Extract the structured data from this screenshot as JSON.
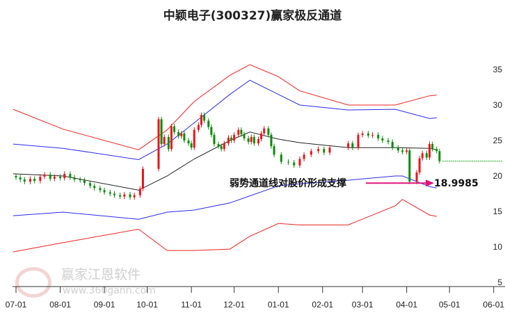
{
  "title": "中颖电子(300327)赢家极反通道",
  "watermark": {
    "brand": "赢家江恩软件",
    "url": "www.360gann.com",
    "seal": "江赢恩家"
  },
  "annotation": {
    "text": "弱势通道线对股价形成支撑",
    "value": "18.9985"
  },
  "colors": {
    "up": "#e8141b",
    "down": "#0a8a0a",
    "upper_band": "#ee2222",
    "upper_inner": "#2a2aee",
    "middle": "#222222",
    "lower_inner": "#2a2aee",
    "lower_band": "#ee2222",
    "arrow": "#e0157a",
    "last_price_line": "#1aa81a"
  },
  "chart_data": {
    "type": "candlestick",
    "title": "中颖电子(300327)赢家极反通道",
    "x_ticks": [
      "07-01",
      "08-01",
      "09-01",
      "10-01",
      "11-01",
      "12-01",
      "01-01",
      "02-01",
      "03-01",
      "04-01",
      "05-01",
      "06-01"
    ],
    "y_ticks": [
      5,
      10,
      15,
      20,
      25,
      30,
      35
    ],
    "ylim": [
      5,
      37
    ],
    "y_axis_position": "right",
    "grid": false,
    "closes": [
      [
        "07-01",
        19.8
      ],
      [
        "07-04",
        19.5
      ],
      [
        "07-07",
        19.2
      ],
      [
        "07-11",
        19.6
      ],
      [
        "07-14",
        19.3
      ],
      [
        "07-18",
        19.9
      ],
      [
        "07-21",
        20.2
      ],
      [
        "07-25",
        19.6
      ],
      [
        "07-28",
        19.9
      ],
      [
        "08-01",
        19.7
      ],
      [
        "08-04",
        20.3
      ],
      [
        "08-08",
        19.8
      ],
      [
        "08-11",
        19.5
      ],
      [
        "08-15",
        19.4
      ],
      [
        "08-18",
        19.0
      ],
      [
        "08-22",
        18.6
      ],
      [
        "08-25",
        18.3
      ],
      [
        "08-29",
        18.0
      ],
      [
        "09-01",
        17.7
      ],
      [
        "09-05",
        17.5
      ],
      [
        "09-08",
        17.3
      ],
      [
        "09-12",
        17.1
      ],
      [
        "09-15",
        17.4
      ],
      [
        "09-19",
        17.0
      ],
      [
        "09-22",
        17.3
      ],
      [
        "09-26",
        18.2
      ],
      [
        "09-28",
        21.0
      ],
      [
        "10-09",
        28.0
      ],
      [
        "10-11",
        24.5
      ],
      [
        "10-13",
        25.5
      ],
      [
        "10-16",
        23.8
      ],
      [
        "10-18",
        27.0
      ],
      [
        "10-20",
        26.2
      ],
      [
        "10-23",
        25.6
      ],
      [
        "10-25",
        26.0
      ],
      [
        "10-27",
        25.0
      ],
      [
        "10-30",
        24.6
      ],
      [
        "11-01",
        24.0
      ],
      [
        "11-03",
        26.5
      ],
      [
        "11-06",
        27.2
      ],
      [
        "11-08",
        28.6
      ],
      [
        "11-10",
        27.8
      ],
      [
        "11-13",
        26.9
      ],
      [
        "11-15",
        25.8
      ],
      [
        "11-17",
        24.5
      ],
      [
        "11-20",
        24.2
      ],
      [
        "11-22",
        23.8
      ],
      [
        "11-24",
        24.6
      ],
      [
        "11-27",
        25.4
      ],
      [
        "11-29",
        25.0
      ],
      [
        "12-01",
        25.8
      ],
      [
        "12-04",
        26.5
      ],
      [
        "12-06",
        25.9
      ],
      [
        "12-08",
        25.3
      ],
      [
        "12-11",
        24.8
      ],
      [
        "12-13",
        25.5
      ],
      [
        "12-15",
        24.6
      ],
      [
        "12-18",
        25.2
      ],
      [
        "12-20",
        26.0
      ],
      [
        "12-22",
        26.7
      ],
      [
        "12-25",
        25.8
      ],
      [
        "12-27",
        24.2
      ],
      [
        "12-29",
        23.0
      ],
      [
        "01-03",
        22.0
      ],
      [
        "01-08",
        21.9
      ],
      [
        "01-12",
        21.5
      ],
      [
        "01-16",
        22.4
      ],
      [
        "01-19",
        23.0
      ],
      [
        "01-24",
        23.5
      ],
      [
        "01-29",
        23.8
      ],
      [
        "02-02",
        23.3
      ],
      [
        "02-06",
        24.0
      ],
      [
        "02-19",
        24.6
      ],
      [
        "02-22",
        24.0
      ],
      [
        "02-26",
        25.8
      ],
      [
        "03-01",
        26.0
      ],
      [
        "03-05",
        25.7
      ],
      [
        "03-08",
        25.8
      ],
      [
        "03-12",
        25.3
      ],
      [
        "03-15",
        25.0
      ],
      [
        "03-19",
        24.8
      ],
      [
        "03-22",
        24.0
      ],
      [
        "03-26",
        23.6
      ],
      [
        "03-29",
        23.4
      ],
      [
        "04-01",
        23.6
      ],
      [
        "04-03",
        19.2
      ],
      [
        "04-08",
        20.5
      ],
      [
        "04-10",
        22.5
      ],
      [
        "04-12",
        23.2
      ],
      [
        "04-15",
        22.6
      ],
      [
        "04-17",
        24.5
      ],
      [
        "04-19",
        23.8
      ],
      [
        "04-22",
        23.5
      ],
      [
        "04-24",
        22.1
      ]
    ],
    "lines": [
      {
        "key": "upper_band",
        "points": [
          [
            "06-29",
            29.4
          ],
          [
            "08-03",
            26.6
          ],
          [
            "09-25",
            23.7
          ],
          [
            "10-15",
            26.5
          ],
          [
            "11-03",
            30.5
          ],
          [
            "11-28",
            34.2
          ],
          [
            "12-12",
            35.7
          ],
          [
            "01-01",
            34.0
          ],
          [
            "01-16",
            32.0
          ],
          [
            "02-19",
            30.0
          ],
          [
            "03-24",
            30.0
          ],
          [
            "04-17",
            31.3
          ],
          [
            "04-22",
            31.4
          ]
        ]
      },
      {
        "key": "upper_inner",
        "points": [
          [
            "06-29",
            24.5
          ],
          [
            "08-03",
            23.9
          ],
          [
            "09-25",
            22.3
          ],
          [
            "10-15",
            24.5
          ],
          [
            "11-03",
            27.5
          ],
          [
            "11-28",
            31.5
          ],
          [
            "12-12",
            33.5
          ],
          [
            "01-01",
            31.5
          ],
          [
            "01-16",
            30.0
          ],
          [
            "02-19",
            29.3
          ],
          [
            "03-24",
            29.4
          ],
          [
            "04-17",
            28.1
          ],
          [
            "04-22",
            28.2
          ]
        ]
      },
      {
        "key": "middle",
        "points": [
          [
            "06-29",
            20.3
          ],
          [
            "08-03",
            20.0
          ],
          [
            "09-25",
            18.0
          ],
          [
            "10-15",
            20.0
          ],
          [
            "11-03",
            22.4
          ],
          [
            "11-28",
            25.0
          ],
          [
            "12-12",
            26.2
          ],
          [
            "01-01",
            25.2
          ],
          [
            "01-16",
            24.7
          ],
          [
            "02-19",
            24.0
          ],
          [
            "03-24",
            24.0
          ],
          [
            "04-17",
            23.9
          ],
          [
            "04-22",
            23.7
          ]
        ]
      },
      {
        "key": "lower_inner",
        "points": [
          [
            "06-29",
            14.4
          ],
          [
            "08-03",
            14.9
          ],
          [
            "09-25",
            13.9
          ],
          [
            "10-15",
            14.9
          ],
          [
            "11-03",
            15.2
          ],
          [
            "11-28",
            16.2
          ],
          [
            "12-12",
            17.2
          ],
          [
            "01-01",
            18.6
          ],
          [
            "01-16",
            18.9
          ],
          [
            "02-19",
            19.4
          ],
          [
            "03-24",
            20.0
          ],
          [
            "03-29",
            20.0
          ],
          [
            "04-17",
            18.5
          ],
          [
            "04-22",
            18.3
          ]
        ]
      },
      {
        "key": "lower_band",
        "points": [
          [
            "06-29",
            9.3
          ],
          [
            "08-03",
            10.6
          ],
          [
            "09-25",
            12.5
          ],
          [
            "10-15",
            9.5
          ],
          [
            "11-03",
            9.5
          ],
          [
            "11-28",
            9.7
          ],
          [
            "12-12",
            11.5
          ],
          [
            "01-01",
            13.3
          ],
          [
            "01-16",
            13.1
          ],
          [
            "02-19",
            13.1
          ],
          [
            "03-24",
            15.8
          ],
          [
            "03-29",
            16.7
          ],
          [
            "04-17",
            14.5
          ],
          [
            "04-22",
            14.3
          ]
        ]
      }
    ],
    "support_value": 18.9985,
    "last_price": 22.1
  }
}
